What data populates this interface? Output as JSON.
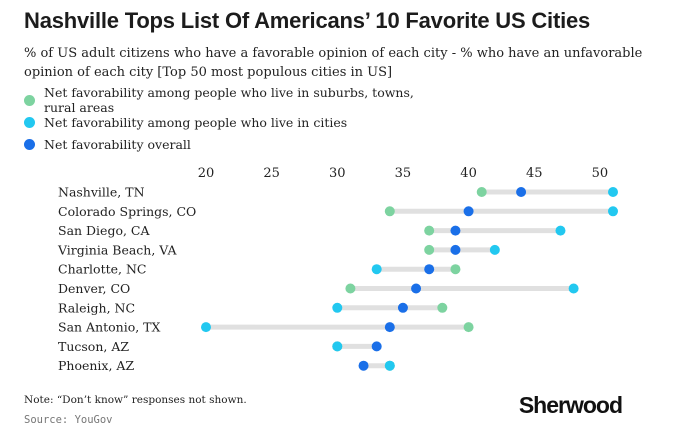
{
  "title": "Nashville Tops List Of Americans’ 10 Favorite US Cities",
  "subtitle": "% of US adult citizens who have a favorable opinion of each city - % who have an unfavorable opinion of each city [Top 50 most populous cities in US]",
  "note": "Note: “Don’t know” responses not shown.",
  "source": "Source: YouGov",
  "brand": "Sherwood",
  "colors": {
    "suburbs": "#7dd3a0",
    "cities": "#22c8f0",
    "overall": "#1a6fe8",
    "range_line": "#e0e0e0"
  },
  "chart_data": {
    "type": "dot",
    "title": "Nashville Tops List Of Americans’ 10 Favorite US Cities",
    "xlim": [
      20,
      51
    ],
    "xticks": [
      20,
      25,
      30,
      35,
      40,
      45,
      50
    ],
    "grid": false,
    "legend_position": "top-left",
    "categories": [
      "Nashville, TN",
      "Colorado Springs, CO",
      "San Diego, CA",
      "Virginia Beach, VA",
      "Charlotte, NC",
      "Denver, CO",
      "Raleigh, NC",
      "San Antonio, TX",
      "Tucson, AZ",
      "Phoenix, AZ"
    ],
    "series": [
      {
        "name": "Net favorability among people who live in suburbs, towns, rural areas",
        "color": "#7dd3a0",
        "values": [
          41,
          34,
          37,
          37,
          39,
          31,
          38,
          40,
          30,
          34
        ]
      },
      {
        "name": "Net favorability among people who live in cities",
        "color": "#22c8f0",
        "values": [
          51,
          51,
          47,
          42,
          33,
          48,
          30,
          20,
          30,
          34
        ]
      },
      {
        "name": "Net favorability overall",
        "color": "#1a6fe8",
        "values": [
          44,
          40,
          39,
          39,
          37,
          36,
          35,
          34,
          33,
          32
        ]
      }
    ]
  }
}
